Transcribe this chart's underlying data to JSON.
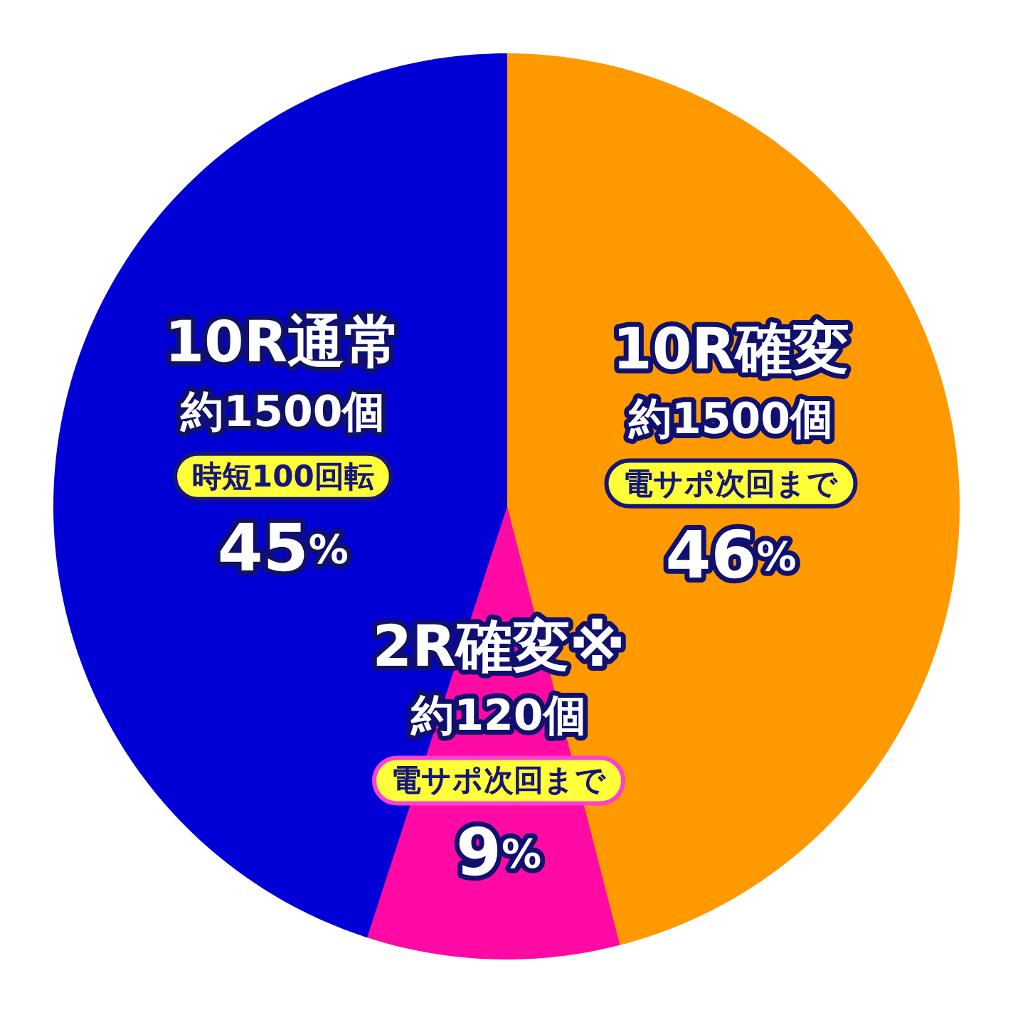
{
  "chart_data": {
    "type": "pie",
    "categories": [
      "10R確変",
      "2R確変※",
      "10R通常"
    ],
    "values": [
      46,
      9,
      45
    ],
    "colors": [
      "#ff9900",
      "#ff0aa5",
      "#0000d6"
    ],
    "value_labels": [
      "46%",
      "9%",
      "45%"
    ],
    "annotations": [
      {
        "text": "約1500個",
        "x": "10R確変"
      },
      {
        "text": "電サポ次回まで",
        "x": "10R確変"
      },
      {
        "text": "約120個",
        "x": "2R確変※"
      },
      {
        "text": "電サポ次回まで",
        "x": "2R確変※"
      },
      {
        "text": "約1500個",
        "x": "10R通常"
      },
      {
        "text": "時短100回転",
        "x": "10R通常"
      }
    ]
  }
}
